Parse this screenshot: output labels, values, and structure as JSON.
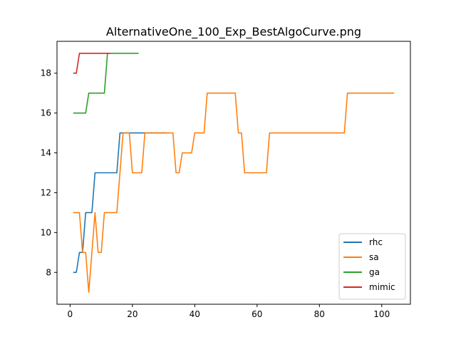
{
  "chart_data": {
    "type": "line",
    "title": "AlternativeOne_100_Exp_BestAlgoCurve.png",
    "xlabel": "",
    "ylabel": "",
    "xlim": [
      -4.2,
      109.2
    ],
    "ylim": [
      6.4,
      19.6
    ],
    "xticks": [
      0,
      20,
      40,
      60,
      80,
      100
    ],
    "yticks": [
      8,
      10,
      12,
      14,
      16,
      18
    ],
    "grid": false,
    "legend_position": "lower-right",
    "series": [
      {
        "name": "rhc",
        "color": "#1f77b4",
        "x": [
          1,
          2,
          3,
          4,
          5,
          6,
          7,
          8,
          9,
          10,
          11,
          12,
          13,
          14,
          15,
          16,
          17,
          18,
          19,
          20,
          21,
          22,
          23,
          24,
          25,
          26,
          27,
          28,
          29,
          30,
          31
        ],
        "y": [
          8,
          8,
          9,
          9,
          11,
          11,
          11,
          13,
          13,
          13,
          13,
          13,
          13,
          13,
          13,
          15,
          15,
          15,
          15,
          15,
          15,
          15,
          15,
          15,
          15,
          15,
          15,
          15,
          15,
          15,
          15
        ]
      },
      {
        "name": "sa",
        "color": "#ff7f0e",
        "x": [
          1,
          2,
          3,
          4,
          5,
          6,
          7,
          8,
          9,
          10,
          11,
          12,
          13,
          14,
          15,
          16,
          17,
          18,
          19,
          20,
          21,
          22,
          23,
          24,
          25,
          26,
          27,
          28,
          29,
          30,
          31,
          32,
          33,
          34,
          35,
          36,
          37,
          38,
          39,
          40,
          41,
          42,
          43,
          44,
          45,
          46,
          47,
          48,
          49,
          50,
          51,
          52,
          53,
          54,
          55,
          56,
          57,
          58,
          59,
          60,
          61,
          62,
          63,
          64,
          65,
          66,
          67,
          68,
          69,
          70,
          71,
          72,
          73,
          74,
          75,
          76,
          77,
          78,
          79,
          80,
          81,
          82,
          83,
          84,
          85,
          86,
          87,
          88,
          89,
          90,
          91,
          92,
          93,
          94,
          95,
          96,
          97,
          98,
          99,
          100,
          101,
          102,
          103,
          104
        ],
        "y": [
          11,
          11,
          11,
          9,
          9,
          7,
          9,
          11,
          9,
          9,
          11,
          11,
          11,
          11,
          11,
          13,
          15,
          15,
          15,
          13,
          13,
          13,
          13,
          15,
          15,
          15,
          15,
          15,
          15,
          15,
          15,
          15,
          15,
          13,
          13,
          14,
          14,
          14,
          14,
          15,
          15,
          15,
          15,
          17,
          17,
          17,
          17,
          17,
          17,
          17,
          17,
          17,
          17,
          15,
          15,
          13,
          13,
          13,
          13,
          13,
          13,
          13,
          13,
          15,
          15,
          15,
          15,
          15,
          15,
          15,
          15,
          15,
          15,
          15,
          15,
          15,
          15,
          15,
          15,
          15,
          15,
          15,
          15,
          15,
          15,
          15,
          15,
          15,
          17,
          17,
          17,
          17,
          17,
          17,
          17,
          17,
          17,
          17,
          17,
          17,
          17,
          17,
          17,
          17
        ]
      },
      {
        "name": "ga",
        "color": "#2ca02c",
        "x": [
          1,
          2,
          3,
          4,
          5,
          6,
          7,
          8,
          9,
          10,
          11,
          12,
          13,
          14,
          15,
          16,
          17,
          18,
          19,
          20,
          21,
          22
        ],
        "y": [
          16,
          16,
          16,
          16,
          16,
          17,
          17,
          17,
          17,
          17,
          17,
          19,
          19,
          19,
          19,
          19,
          19,
          19,
          19,
          19,
          19,
          19
        ]
      },
      {
        "name": "mimic",
        "color": "#d62728",
        "x": [
          1,
          2,
          3,
          4,
          5,
          6,
          7,
          8,
          9,
          10,
          11,
          12,
          13
        ],
        "y": [
          18,
          18,
          19,
          19,
          19,
          19,
          19,
          19,
          19,
          19,
          19,
          19,
          19
        ]
      }
    ]
  }
}
